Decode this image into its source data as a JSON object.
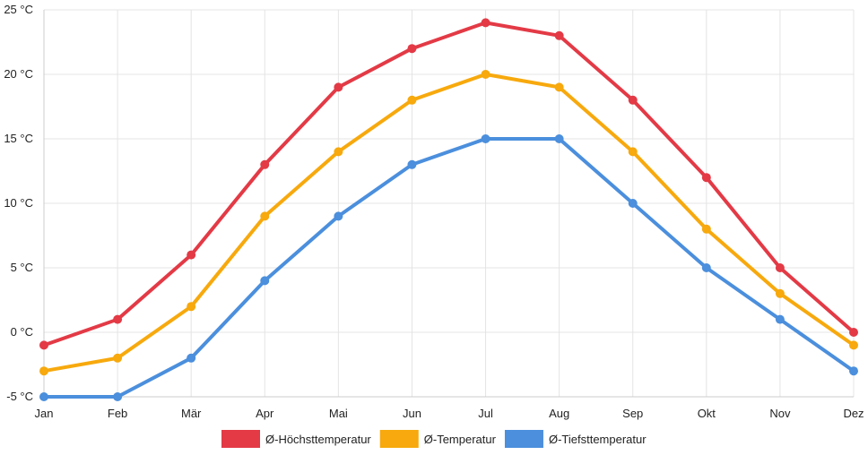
{
  "chart_data": {
    "type": "line",
    "categories": [
      "Jan",
      "Feb",
      "Mär",
      "Apr",
      "Mai",
      "Jun",
      "Jul",
      "Aug",
      "Sep",
      "Okt",
      "Nov",
      "Dez"
    ],
    "series": [
      {
        "name": "Ø-Höchsttemperatur",
        "color": "#e33a46",
        "values": [
          -1,
          1,
          6,
          13,
          19,
          22,
          24,
          23,
          18,
          12,
          5,
          0
        ]
      },
      {
        "name": "Ø-Temperatur",
        "color": "#f7a90d",
        "values": [
          -3,
          -2,
          2,
          9,
          14,
          18,
          20,
          19,
          14,
          8,
          3,
          -1
        ]
      },
      {
        "name": "Ø-Tiefsttemperatur",
        "color": "#4b8fdd",
        "values": [
          -5,
          -5,
          -2,
          4,
          9,
          13,
          15,
          15,
          10,
          5,
          1,
          -3
        ]
      }
    ],
    "y_ticks": [
      "25 °C",
      "20 °C",
      "15 °C",
      "10 °C",
      "5 °C",
      "0 °C",
      "-5 °C"
    ],
    "y_tick_values": [
      25,
      20,
      15,
      10,
      5,
      0,
      -5
    ],
    "ylim": [
      -5,
      25
    ],
    "grid": true,
    "legend_position": "bottom-center"
  }
}
